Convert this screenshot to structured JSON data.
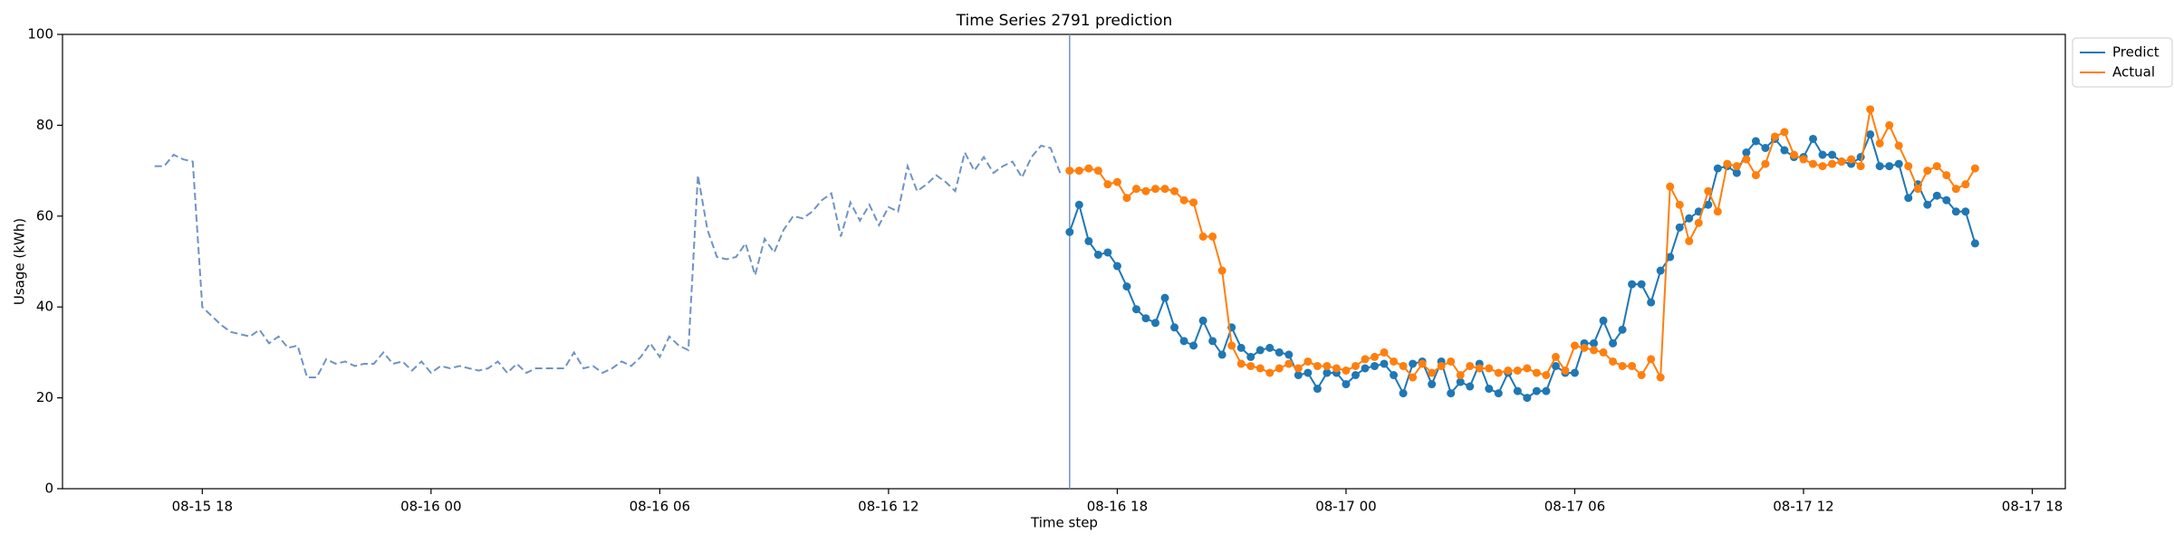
{
  "chart_data": {
    "type": "line",
    "title": "Time Series 2791 prediction",
    "x_label": "Time step",
    "y_label": "Usage (kWh)",
    "xlim": [
      "08-15 14:20",
      "08-17 18:52"
    ],
    "xticks": [
      "08-15 18",
      "08-16 00",
      "08-16 06",
      "08-16 12",
      "08-16 18",
      "08-17 00",
      "08-17 06",
      "08-17 12",
      "08-17 18"
    ],
    "ylim": [
      0,
      100
    ],
    "yticks": [
      0,
      20,
      40,
      60,
      80,
      100
    ],
    "grid": false,
    "legend": "upper right outside",
    "vline_x": "08-16 16:45",
    "vline_color": "#6f93c4",
    "series": [
      {
        "color": "#6f93c4",
        "dashed": true,
        "markers": false,
        "start": "08-15 16:45",
        "step_minutes": 15,
        "values": [
          71,
          71,
          73.5,
          72.5,
          72,
          40,
          38,
          36,
          34.5,
          34,
          33.5,
          35,
          32,
          33.5,
          31,
          31.5,
          24.5,
          24.5,
          28.5,
          27.5,
          28,
          27,
          27.5,
          27.5,
          30,
          27.5,
          28,
          26,
          28,
          25.5,
          27,
          26.5,
          27,
          26.5,
          26,
          26.5,
          28,
          25.5,
          27.5,
          25.5,
          26.5,
          26.5,
          26.5,
          26.5,
          30,
          26.5,
          27,
          25.5,
          26.5,
          28,
          27,
          29,
          32,
          29,
          33.5,
          31.5,
          30.5,
          69,
          57,
          51,
          50.5,
          51,
          54,
          47,
          55,
          52,
          57,
          60,
          59.5,
          61,
          63.5,
          65,
          55.5,
          63,
          59,
          62.5,
          58,
          62,
          61,
          71,
          65.5,
          67,
          69,
          67.5,
          65.5,
          74,
          70,
          73,
          69.5,
          71,
          72,
          68.5,
          73,
          75.5,
          75,
          69.5
        ]
      },
      {
        "name": "Predict",
        "color": "#1f77b4",
        "dashed": false,
        "markers": true,
        "start": "08-16 16:45",
        "step_minutes": 15,
        "values": [
          56.5,
          62.5,
          54.5,
          51.5,
          52,
          49,
          44.5,
          39.5,
          37.5,
          36.5,
          42,
          35.5,
          32.5,
          31.5,
          37,
          32.5,
          29.5,
          35.5,
          31,
          29,
          30.5,
          31,
          30,
          29.5,
          25,
          25.5,
          22,
          25.5,
          25.5,
          23,
          25,
          26.5,
          27,
          27.5,
          25,
          21,
          27.5,
          28,
          23,
          28,
          21,
          23.5,
          22.5,
          27.5,
          22,
          21,
          25.5,
          21.5,
          20,
          21.5,
          21.5,
          27,
          25.5,
          25.5,
          32,
          32,
          37,
          32,
          35,
          45,
          45,
          41,
          48,
          51,
          57.5,
          59.5,
          61,
          62.5,
          70.5,
          71,
          69.5,
          74,
          76.5,
          75,
          77,
          74.5,
          73,
          73,
          77,
          73.5,
          73.5,
          72,
          71.5,
          73,
          78,
          71,
          71,
          71.5,
          64,
          67,
          62.5,
          64.5,
          63.5,
          61,
          61,
          54
        ]
      },
      {
        "name": "Actual",
        "color": "#ff7f0e",
        "dashed": false,
        "markers": true,
        "start": "08-16 16:45",
        "step_minutes": 15,
        "values": [
          70,
          70,
          70.5,
          70,
          67,
          67.5,
          64,
          66,
          65.5,
          66,
          66,
          65.5,
          63.5,
          63,
          55.5,
          55.5,
          48,
          31.5,
          27.5,
          27,
          26.5,
          25.5,
          26.5,
          27.5,
          26.5,
          28,
          27,
          27,
          26.5,
          26,
          27,
          28.5,
          29,
          30,
          28,
          27,
          24.5,
          27.5,
          25.5,
          27,
          28,
          25,
          27,
          26.5,
          26.5,
          25.5,
          26,
          26,
          26.5,
          25.5,
          25,
          29,
          26,
          31.5,
          31,
          30.5,
          30,
          28,
          27,
          27,
          25,
          28.5,
          24.5,
          66.5,
          62.5,
          54.5,
          58.5,
          65.5,
          61,
          71.5,
          71,
          72.5,
          69,
          71.5,
          77.5,
          78.5,
          73.5,
          72.5,
          71.5,
          71,
          71.5,
          72,
          72.5,
          71,
          83.5,
          76,
          80,
          75.5,
          71,
          66,
          70,
          71,
          69,
          66,
          67,
          70.5
        ]
      }
    ]
  }
}
